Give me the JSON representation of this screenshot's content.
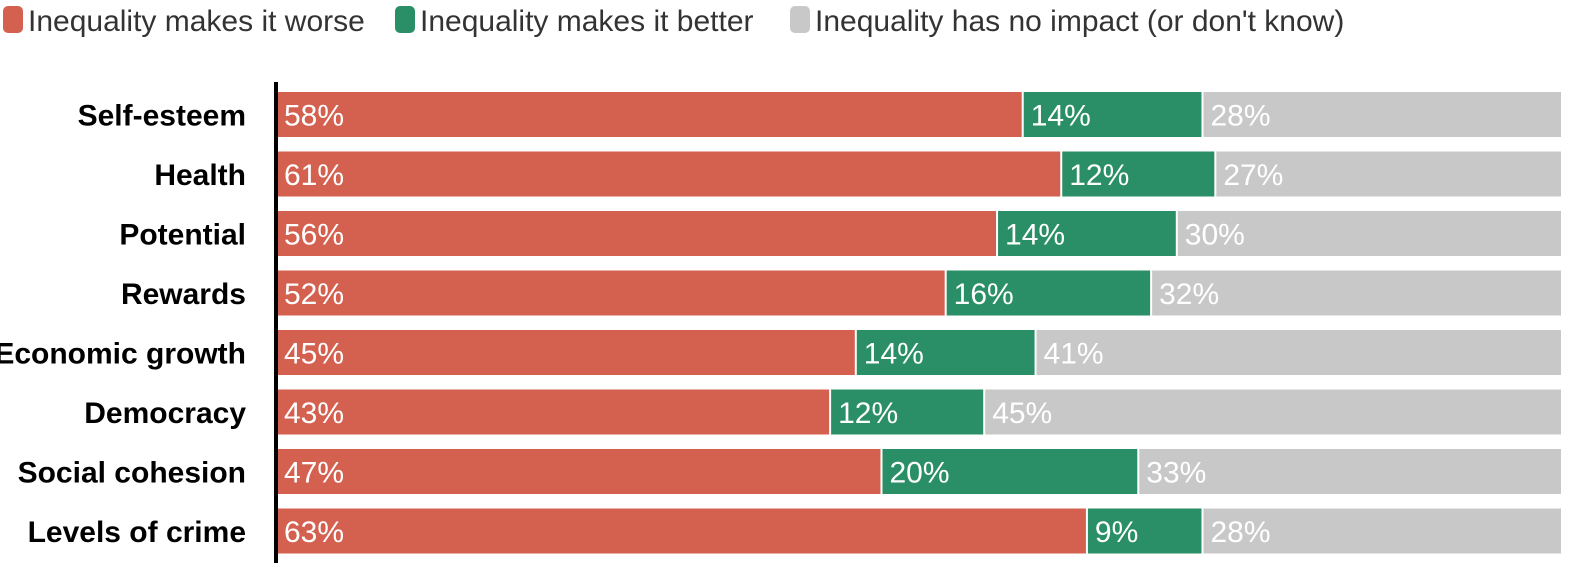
{
  "chart_data": {
    "type": "bar",
    "orientation": "horizontal",
    "stacked": true,
    "title": "",
    "xlabel": "",
    "ylabel": "",
    "xlim": [
      0,
      100
    ],
    "grid": false,
    "legend_position": "top-left",
    "categories": [
      "Self-esteem",
      "Health",
      "Potential",
      "Rewards",
      "Economic growth",
      "Democracy",
      "Social cohesion",
      "Levels of crime"
    ],
    "series": [
      {
        "name": "Inequality makes it worse",
        "color": "#d46150",
        "values": [
          58,
          61,
          56,
          52,
          45,
          43,
          47,
          63
        ]
      },
      {
        "name": "Inequality makes it better",
        "color": "#2a8f66",
        "values": [
          14,
          12,
          14,
          16,
          14,
          12,
          20,
          9
        ]
      },
      {
        "name": "Inequality has no impact (or don't know)",
        "color": "#c8c8c8",
        "values": [
          28,
          27,
          30,
          32,
          41,
          45,
          33,
          28
        ]
      }
    ],
    "value_suffix": "%"
  }
}
